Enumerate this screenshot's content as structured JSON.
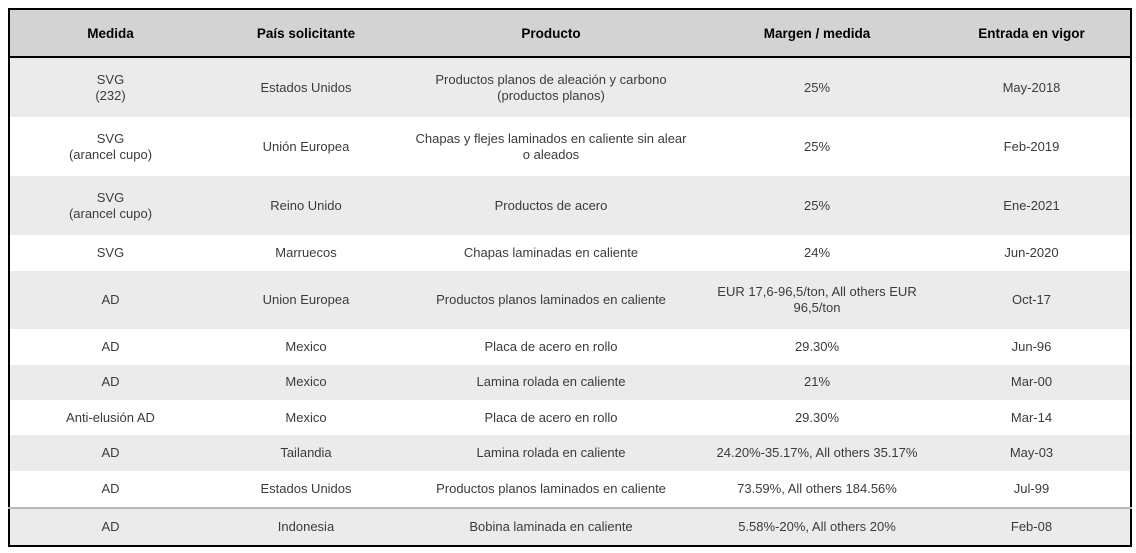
{
  "table": {
    "headers": [
      "Medida",
      "País solicitante",
      "Producto",
      "Margen / medida",
      "Entrada en vigor"
    ],
    "rows": [
      {
        "medida": "SVG\n(232)",
        "pais": "Estados Unidos",
        "producto": "Productos planos de aleación y carbono (productos planos)",
        "margen": "25%",
        "entrada": "May-2018"
      },
      {
        "medida": "SVG\n(arancel cupo)",
        "pais": "Unión Europea",
        "producto": "Chapas y flejes laminados en caliente sin alear o aleados",
        "margen": "25%",
        "entrada": "Feb-2019"
      },
      {
        "medida": "SVG\n(arancel cupo)",
        "pais": "Reino Unido",
        "producto": "Productos de acero",
        "margen": "25%",
        "entrada": "Ene-2021"
      },
      {
        "medida": "SVG",
        "pais": "Marruecos",
        "producto": "Chapas laminadas en caliente",
        "margen": "24%",
        "entrada": "Jun-2020"
      },
      {
        "medida": "AD",
        "pais": "Union Europea",
        "producto": "Productos planos laminados en caliente",
        "margen": "EUR 17,6-96,5/ton, All others EUR 96,5/ton",
        "entrada": "Oct-17"
      },
      {
        "medida": "AD",
        "pais": "Mexico",
        "producto": "Placa de acero en rollo",
        "margen": "29.30%",
        "entrada": "Jun-96"
      },
      {
        "medida": "AD",
        "pais": "Mexico",
        "producto": "Lamina rolada en caliente",
        "margen": "21%",
        "entrada": "Mar-00"
      },
      {
        "medida": "Anti-elusión AD",
        "pais": "Mexico",
        "producto": "Placa de acero en rollo",
        "margen": "29.30%",
        "entrada": "Mar-14"
      },
      {
        "medida": "AD",
        "pais": "Tailandia",
        "producto": "Lamina rolada en caliente",
        "margen": "24.20%-35.17%, All others 35.17%",
        "entrada": "May-03"
      },
      {
        "medida": "AD",
        "pais": "Estados Unidos",
        "producto": "Productos planos laminados en caliente",
        "margen": "73.59%, All others 184.56%",
        "entrada": "Jul-99"
      },
      {
        "medida": "AD",
        "pais": "Indonesia",
        "producto": "Bobina laminada en caliente",
        "margen": "5.58%-20%, All others 20%",
        "entrada": "Feb-08"
      }
    ]
  },
  "colors": {
    "header_bg": "#d3d3d3",
    "row_shaded_bg": "#ebebeb",
    "row_plain_bg": "#ffffff",
    "outer_border": "#000000",
    "header_text": "#000000",
    "body_text": "#3b3b3b",
    "last_row_separator": "#b9b9b9"
  },
  "chart_data": {
    "type": "table",
    "columns": [
      "Medida",
      "País solicitante",
      "Producto",
      "Margen / medida",
      "Entrada en vigor"
    ],
    "rows": [
      [
        "SVG (232)",
        "Estados Unidos",
        "Productos planos de aleación y carbono (productos planos)",
        "25%",
        "May-2018"
      ],
      [
        "SVG (arancel cupo)",
        "Unión Europea",
        "Chapas y flejes laminados en caliente sin alear o aleados",
        "25%",
        "Feb-2019"
      ],
      [
        "SVG (arancel cupo)",
        "Reino Unido",
        "Productos de acero",
        "25%",
        "Ene-2021"
      ],
      [
        "SVG",
        "Marruecos",
        "Chapas laminadas en caliente",
        "24%",
        "Jun-2020"
      ],
      [
        "AD",
        "Union Europea",
        "Productos planos laminados en caliente",
        "EUR 17,6-96,5/ton, All others EUR 96,5/ton",
        "Oct-17"
      ],
      [
        "AD",
        "Mexico",
        "Placa de acero en rollo",
        "29.30%",
        "Jun-96"
      ],
      [
        "AD",
        "Mexico",
        "Lamina rolada en caliente",
        "21%",
        "Mar-00"
      ],
      [
        "Anti-elusión AD",
        "Mexico",
        "Placa de acero en rollo",
        "29.30%",
        "Mar-14"
      ],
      [
        "AD",
        "Tailandia",
        "Lamina rolada en caliente",
        "24.20%-35.17%, All others 35.17%",
        "May-03"
      ],
      [
        "AD",
        "Estados Unidos",
        "Productos planos laminados en caliente",
        "73.59%, All others 184.56%",
        "Jul-99"
      ],
      [
        "AD",
        "Indonesia",
        "Bobina laminada en caliente",
        "5.58%-20%, All others 20%",
        "Feb-08"
      ]
    ],
    "layout": {
      "header_row": true,
      "zebra_striping": "odd-rows-shaded",
      "grid": "none"
    }
  }
}
